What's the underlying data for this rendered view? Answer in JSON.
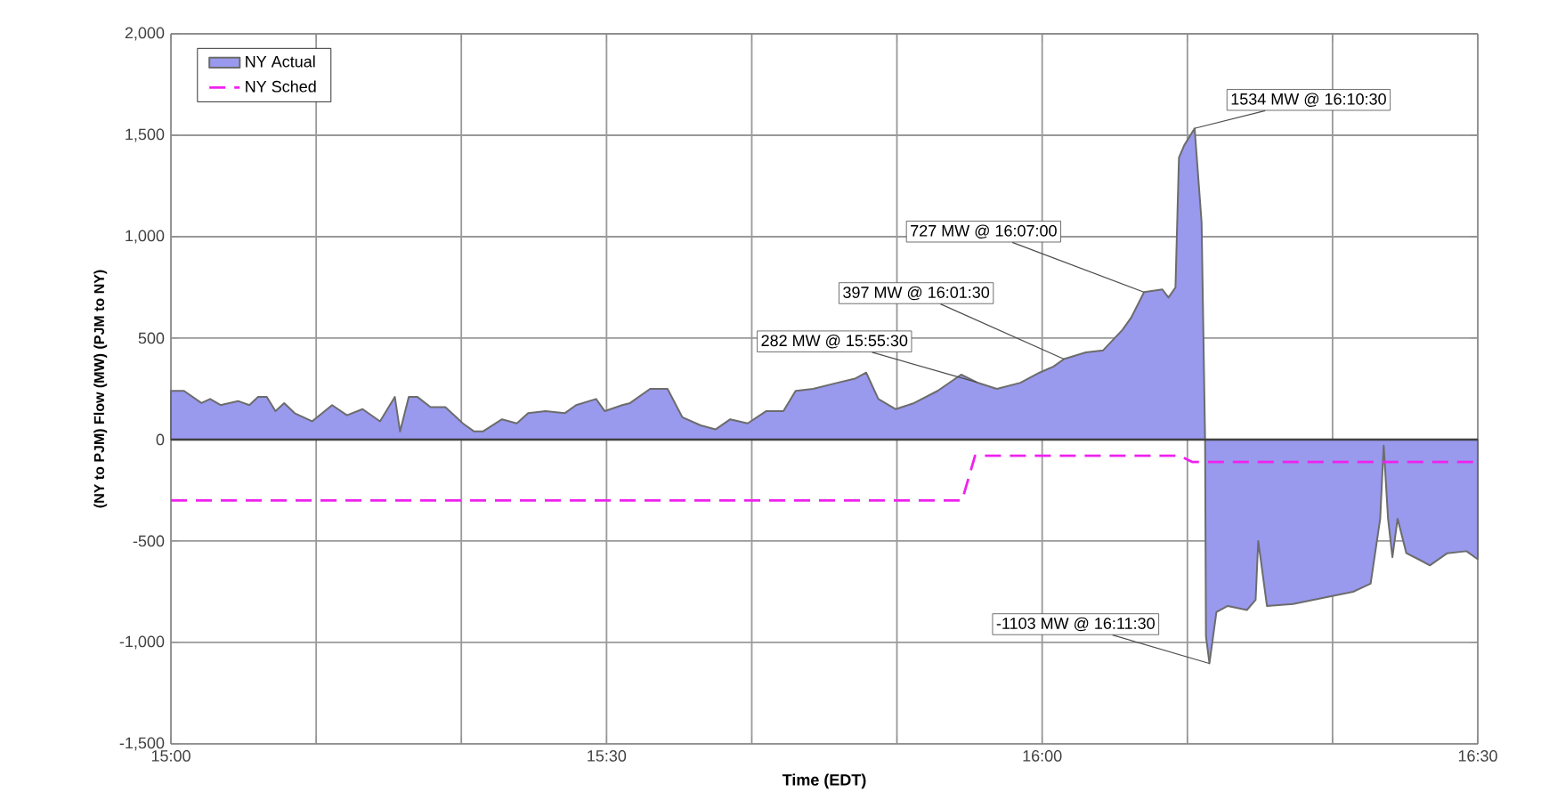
{
  "chart_data": {
    "type": "area",
    "xlabel": "Time (EDT)",
    "ylabel": "(NY to PJM) Flow (MW) (PJM to NY)",
    "xlim": [
      15,
      16.5
    ],
    "xticks": [
      {
        "value": 15,
        "label": "15:00"
      },
      {
        "value": 15.1667,
        "label": null
      },
      {
        "value": 15.3333,
        "label": null
      },
      {
        "value": 15.5,
        "label": "15:30"
      },
      {
        "value": 15.6667,
        "label": null
      },
      {
        "value": 15.8333,
        "label": null
      },
      {
        "value": 16,
        "label": "16:00"
      },
      {
        "value": 16.1667,
        "label": null
      },
      {
        "value": 16.3333,
        "label": null
      },
      {
        "value": 16.5,
        "label": "16:30"
      }
    ],
    "ylim": [
      -1500,
      2000
    ],
    "yticks": [
      {
        "value": -1500,
        "label": "-1,500"
      },
      {
        "value": -1000,
        "label": "-1,000"
      },
      -500,
      0,
      500,
      {
        "value": 1000,
        "label": "1,000"
      },
      {
        "value": 1500,
        "label": "1,500"
      },
      {
        "value": 2000,
        "label": "2,000"
      }
    ],
    "grid": true,
    "legend": "top left",
    "marker": "none",
    "ref_lines": [
      {
        "axis": "y",
        "value": 0,
        "color": "#404040"
      }
    ],
    "annotations": [
      {
        "text": "282 MW @ 15:55:30",
        "x": 15.925,
        "y": 282
      },
      {
        "text": "397 MW @ 16:01:30",
        "x": 16.025,
        "y": 397
      },
      {
        "text": "727 MW @ 16:07:00",
        "x": 16.1167,
        "y": 727
      },
      {
        "text": "1534 MW @ 16:10:30",
        "x": 16.175,
        "y": 1534
      },
      {
        "text": "-1103 MW @ 16:11:30",
        "x": 16.1917,
        "y": -1103
      }
    ],
    "series": [
      {
        "name": "NY Actual",
        "color": "#9999ee",
        "x": [
          15.0,
          15.015,
          15.035,
          15.045,
          15.057,
          15.077,
          15.09,
          15.1,
          15.11,
          15.12,
          15.13,
          15.142,
          15.162,
          15.185,
          15.202,
          15.22,
          15.24,
          15.257,
          15.263,
          15.273,
          15.283,
          15.298,
          15.315,
          15.335,
          15.348,
          15.358,
          15.38,
          15.397,
          15.41,
          15.43,
          15.452,
          15.465,
          15.488,
          15.498,
          15.518,
          15.527,
          15.55,
          15.57,
          15.587,
          15.608,
          15.625,
          15.642,
          15.662,
          15.683,
          15.703,
          15.717,
          15.737,
          15.765,
          15.785,
          15.798,
          15.812,
          15.832,
          15.853,
          15.88,
          15.907,
          15.925,
          15.948,
          15.975,
          15.997,
          16.013,
          16.025,
          16.05,
          16.07,
          16.092,
          16.102,
          16.117,
          16.138,
          16.145,
          16.153,
          16.157,
          16.163,
          16.175,
          16.183,
          16.187,
          16.188,
          16.192,
          16.2,
          16.213,
          16.235,
          16.245,
          16.248,
          16.258,
          16.288,
          16.323,
          16.357,
          16.377,
          16.388,
          16.392,
          16.397,
          16.402,
          16.408,
          16.418,
          16.432,
          16.445,
          16.465,
          16.487,
          16.5
        ],
        "values": [
          240,
          240,
          180,
          200,
          170,
          190,
          170,
          210,
          210,
          140,
          180,
          130,
          90,
          170,
          120,
          150,
          90,
          210,
          40,
          210,
          210,
          160,
          160,
          80,
          40,
          40,
          100,
          80,
          130,
          140,
          130,
          170,
          200,
          140,
          170,
          180,
          250,
          250,
          110,
          70,
          50,
          100,
          80,
          140,
          140,
          240,
          250,
          280,
          300,
          330,
          200,
          150,
          180,
          240,
          320,
          282,
          250,
          280,
          330,
          360,
          397,
          430,
          440,
          540,
          600,
          727,
          740,
          700,
          750,
          1390,
          1450,
          1534,
          1070,
          0,
          -970,
          -1103,
          -850,
          -820,
          -840,
          -790,
          -500,
          -820,
          -810,
          -780,
          -750,
          -710,
          -390,
          -30,
          -390,
          -580,
          -390,
          -560,
          -590,
          -620,
          -560,
          -550,
          -590
        ]
      },
      {
        "name": "NY Sched",
        "type": "line",
        "line_style": "dashed",
        "color": "#ee22ee",
        "x": [
          15.0,
          15.908,
          15.923,
          16.158,
          16.172,
          16.5
        ],
        "values": [
          -300,
          -300,
          -80,
          -80,
          -110,
          -110
        ]
      }
    ]
  }
}
